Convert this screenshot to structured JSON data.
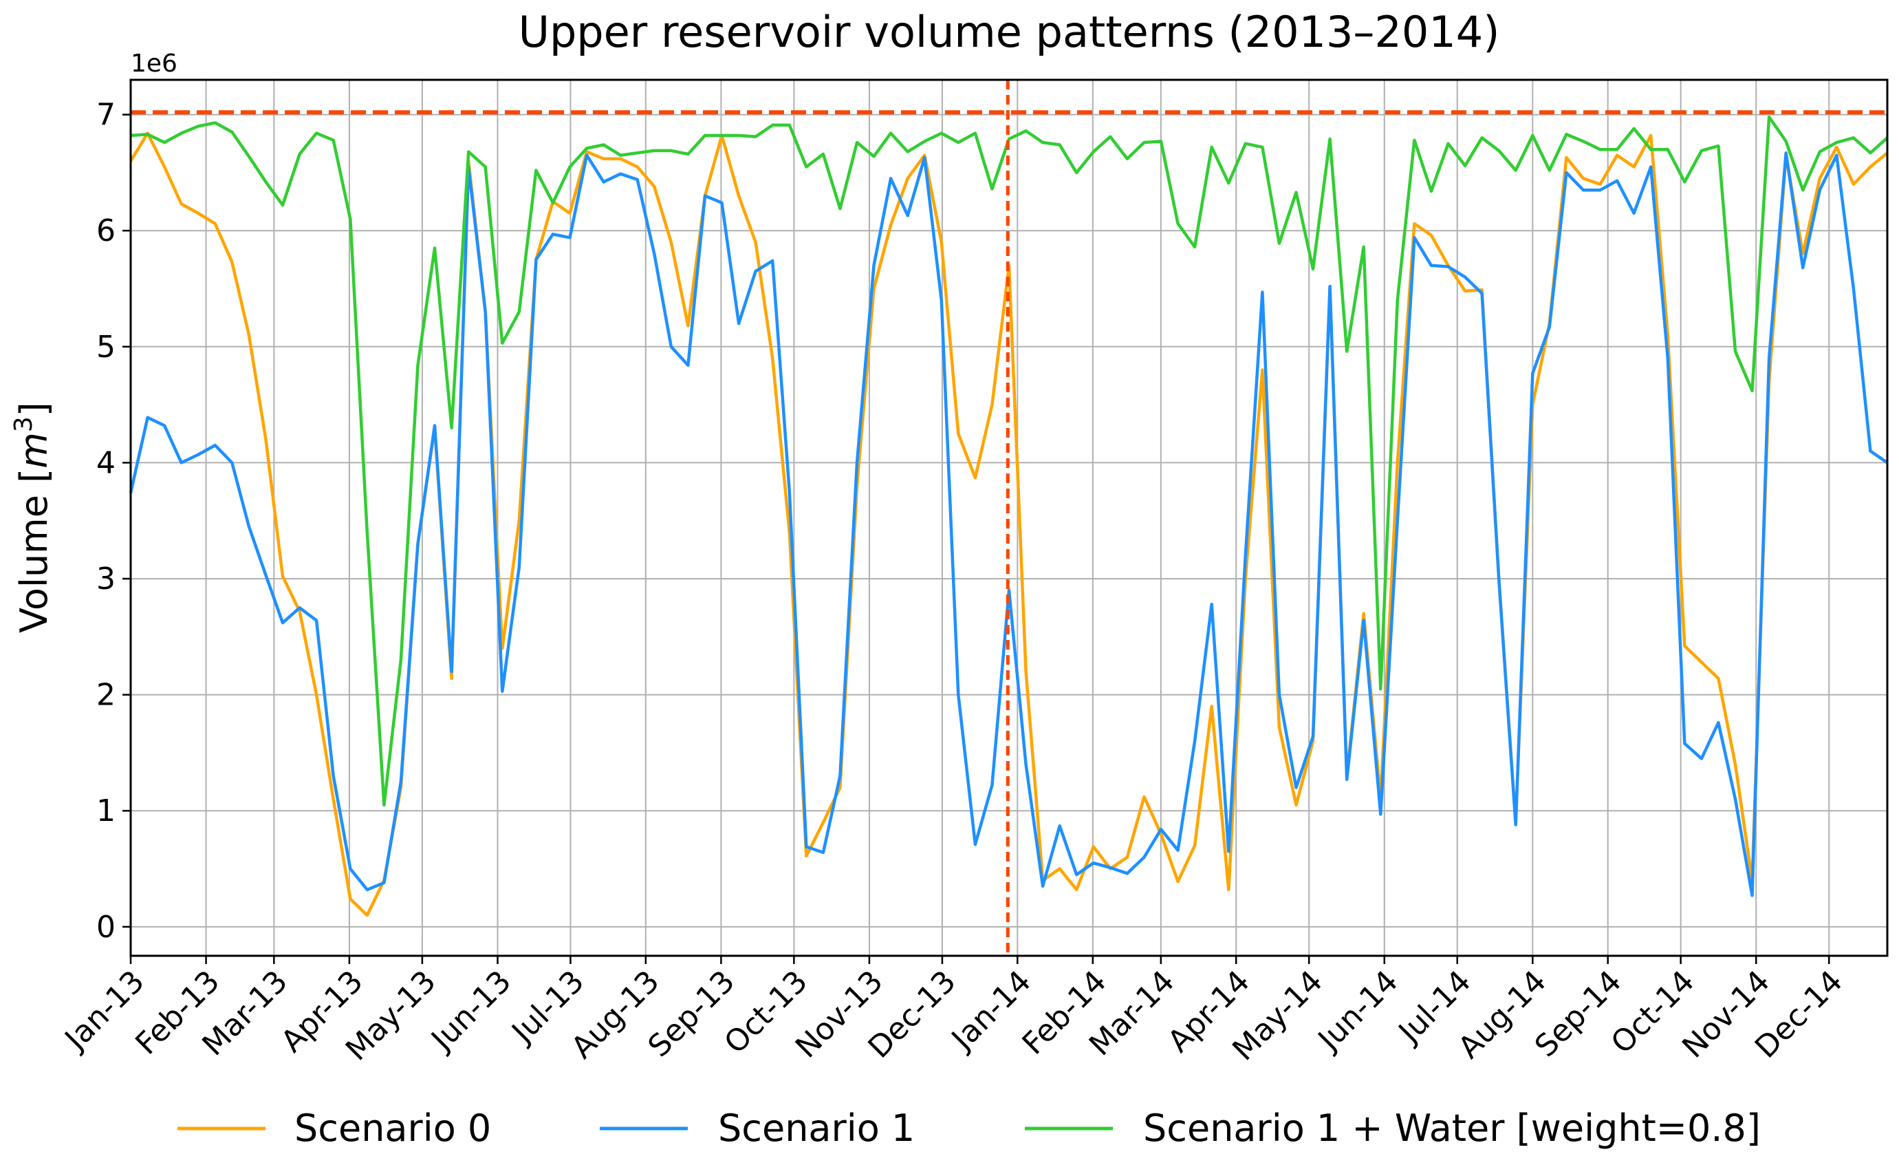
{
  "chart_data": {
    "type": "line",
    "title": "Upper reservoir volume patterns (2013–2014)",
    "ylabel_text": "Volume [m",
    "ylabel_unit": "m",
    "ylabel_exponent": "3",
    "ylabel_close": "]",
    "y_offset_label": "1e6",
    "y_scale": 1000000,
    "ylim": [
      -0.25,
      7.3
    ],
    "yticks": [
      0,
      1,
      2,
      3,
      4,
      5,
      6,
      7
    ],
    "ytick_labels": [
      "0",
      "1",
      "2",
      "3",
      "4",
      "5",
      "6",
      "7"
    ],
    "x_count": 150,
    "xticks": [
      0,
      5.17,
      9.83,
      15.0,
      20.0,
      25.17,
      30.17,
      35.33,
      40.5,
      45.5,
      50.67,
      55.67,
      60.83,
      66.0,
      70.67,
      75.83,
      80.83,
      86.0,
      91.0,
      96.17,
      101.33,
      106.33,
      111.5,
      116.5
    ],
    "xtick_labels": [
      "Jan-13",
      "Feb-13",
      "Mar-13",
      "Apr-13",
      "May-13",
      "Jun-13",
      "Jul-13",
      "Aug-13",
      "Sep-13",
      "Oct-13",
      "Nov-13",
      "Dec-13",
      "Jan-14",
      "Feb-14",
      "Mar-14",
      "Apr-14",
      "May-14",
      "Jun-14",
      "Jul-14",
      "Aug-14",
      "Sep-14",
      "Oct-14",
      "Nov-14",
      "Dec-14"
    ],
    "xlim": [
      0,
      120.5
    ],
    "capacity_line": 7.02,
    "year_split_x": 60.17,
    "grid": true,
    "legend_position": "bottom-center",
    "series": [
      {
        "name": "Scenario 0",
        "color": "#FFA500",
        "values": [
          6.6,
          6.84,
          6.55,
          6.23,
          6.15,
          6.06,
          5.73,
          5.1,
          4.2,
          3.02,
          2.72,
          2.0,
          1.1,
          0.24,
          0.1,
          0.4,
          1.2,
          3.3,
          4.3,
          2.14,
          6.6,
          5.3,
          2.4,
          3.5,
          5.75,
          6.25,
          6.15,
          6.68,
          6.62,
          6.62,
          6.55,
          6.38,
          5.9,
          5.18,
          6.3,
          6.82,
          6.3,
          5.9,
          4.9,
          3.4,
          0.61,
          0.9,
          1.2,
          3.8,
          5.5,
          6.05,
          6.45,
          6.65,
          5.9,
          4.25,
          3.87,
          4.5,
          5.7,
          2.2,
          0.4,
          0.5,
          0.32,
          0.69,
          0.5,
          0.6,
          1.12,
          0.8,
          0.39,
          0.7,
          1.9,
          0.32,
          3.0,
          4.8,
          1.72,
          1.05,
          1.6,
          5.5,
          1.3,
          2.7,
          1.1,
          4.0,
          6.06,
          5.96,
          5.7,
          5.48,
          5.49,
          3.0,
          0.9,
          4.5,
          5.2,
          6.63,
          6.45,
          6.4,
          6.65,
          6.55,
          6.82,
          5.1,
          2.42,
          2.28,
          2.14,
          1.4,
          0.4,
          4.7,
          6.65,
          5.8,
          6.45,
          6.72,
          6.4,
          6.55,
          6.67
        ],
        "note": "values sampled at uniform x from 0 to 120.5"
      },
      {
        "name": "Scenario 1",
        "color": "#1E90FF",
        "values": [
          3.74,
          4.39,
          4.32,
          4.0,
          4.07,
          4.15,
          4.0,
          3.45,
          3.03,
          2.62,
          2.75,
          2.64,
          1.3,
          0.5,
          0.32,
          0.38,
          1.25,
          3.3,
          4.32,
          2.2,
          6.55,
          5.3,
          2.03,
          3.1,
          5.75,
          5.97,
          5.94,
          6.65,
          6.42,
          6.49,
          6.44,
          5.8,
          5.0,
          4.84,
          6.3,
          6.24,
          5.2,
          5.65,
          5.74,
          3.75,
          0.69,
          0.64,
          1.3,
          4.0,
          5.7,
          6.45,
          6.13,
          6.63,
          5.4,
          2.0,
          0.71,
          1.22,
          2.9,
          1.4,
          0.35,
          0.87,
          0.45,
          0.55,
          0.51,
          0.46,
          0.6,
          0.84,
          0.66,
          1.6,
          2.78,
          0.65,
          3.2,
          5.47,
          2.0,
          1.2,
          1.64,
          5.52,
          1.27,
          2.64,
          0.97,
          3.5,
          5.94,
          5.7,
          5.69,
          5.6,
          5.46,
          3.0,
          0.88,
          4.77,
          5.17,
          6.5,
          6.35,
          6.35,
          6.43,
          6.15,
          6.55,
          4.9,
          1.58,
          1.45,
          1.76,
          1.1,
          0.27,
          4.9,
          6.67,
          5.68,
          6.35,
          6.65,
          5.5,
          4.1,
          4.0
        ],
        "note": "values sampled at uniform x from 0 to 120.5"
      },
      {
        "name": "Scenario 1 + Water [weight=0.8]",
        "color": "#32CD32",
        "values": [
          6.82,
          6.83,
          6.76,
          6.84,
          6.9,
          6.93,
          6.85,
          6.64,
          6.42,
          6.22,
          6.66,
          6.84,
          6.78,
          6.1,
          3.4,
          1.05,
          2.3,
          4.84,
          5.85,
          4.3,
          6.68,
          6.55,
          5.03,
          5.3,
          6.52,
          6.24,
          6.55,
          6.71,
          6.74,
          6.65,
          6.67,
          6.69,
          6.69,
          6.66,
          6.82,
          6.82,
          6.82,
          6.81,
          6.91,
          6.91,
          6.55,
          6.66,
          6.19,
          6.76,
          6.64,
          6.84,
          6.68,
          6.77,
          6.84,
          6.76,
          6.84,
          6.36,
          6.79,
          6.86,
          6.76,
          6.74,
          6.5,
          6.68,
          6.81,
          6.62,
          6.76,
          6.77,
          6.06,
          5.86,
          6.72,
          6.41,
          6.75,
          6.72,
          5.89,
          6.33,
          5.67,
          6.79,
          4.96,
          5.86,
          2.05,
          5.4,
          6.78,
          6.34,
          6.75,
          6.56,
          6.8,
          6.69,
          6.52,
          6.82,
          6.52,
          6.83,
          6.77,
          6.7,
          6.7,
          6.88,
          6.7,
          6.7,
          6.42,
          6.69,
          6.73,
          4.96,
          4.62,
          6.98,
          6.77,
          6.35,
          6.68,
          6.76,
          6.8,
          6.67,
          6.8
        ],
        "note": "values sampled at uniform x from 0 to 120.5"
      }
    ]
  }
}
